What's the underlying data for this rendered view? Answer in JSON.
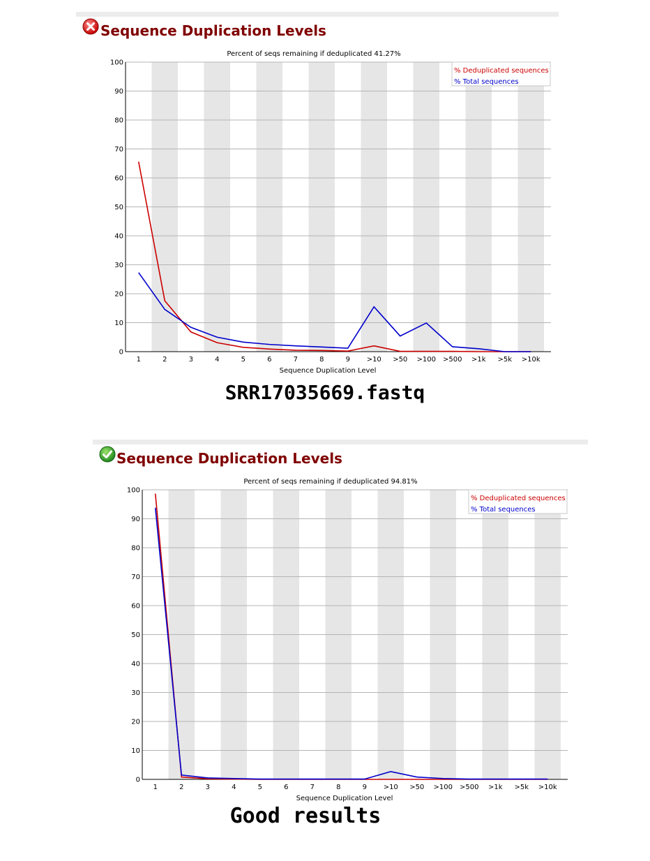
{
  "charts": [
    {
      "status": "fail",
      "status_icon": "error-icon",
      "section_title": "Sequence Duplication Levels",
      "caption": "SRR17035669.fastq",
      "chart_data": {
        "type": "line",
        "title": "Percent of seqs remaining if deduplicated 41.27%",
        "xlabel": "Sequence Duplication Level",
        "ylabel": "",
        "categories": [
          "1",
          "2",
          "3",
          "4",
          "5",
          "6",
          "7",
          "8",
          "9",
          ">10",
          ">50",
          ">100",
          ">500",
          ">1k",
          ">5k",
          ">10k"
        ],
        "ylim": [
          0,
          100
        ],
        "yticks": [
          0,
          10,
          20,
          30,
          40,
          50,
          60,
          70,
          80,
          90,
          100
        ],
        "grid": true,
        "legend": "top-right",
        "series": [
          {
            "name": "% Deduplicated sequences",
            "color": "#cc0000",
            "values": [
              65.6,
              17.6,
              6.8,
              3.1,
              1.5,
              0.9,
              0.5,
              0.4,
              0.2,
              2.0,
              0.1,
              0.1,
              0.1,
              0.0,
              0.0,
              0.0
            ]
          },
          {
            "name": "% Total sequences",
            "color": "#0000cc",
            "values": [
              27.3,
              14.6,
              8.4,
              5.0,
              3.3,
              2.5,
              2.0,
              1.6,
              1.2,
              15.5,
              5.4,
              9.9,
              1.7,
              1.0,
              0.0,
              0.0
            ]
          }
        ]
      }
    },
    {
      "status": "pass",
      "status_icon": "check-icon",
      "section_title": "Sequence Duplication Levels",
      "caption": "Good results",
      "chart_data": {
        "type": "line",
        "title": "Percent of seqs remaining if deduplicated 94.81%",
        "xlabel": "Sequence Duplication Level",
        "ylabel": "",
        "categories": [
          "1",
          "2",
          "3",
          "4",
          "5",
          "6",
          "7",
          "8",
          "9",
          ">10",
          ">50",
          ">100",
          ">500",
          ">1k",
          ">5k",
          ">10k"
        ],
        "ylim": [
          0,
          100
        ],
        "yticks": [
          0,
          10,
          20,
          30,
          40,
          50,
          60,
          70,
          80,
          90,
          100
        ],
        "grid": true,
        "legend": "top-right",
        "series": [
          {
            "name": "% Deduplicated sequences",
            "color": "#cc0000",
            "values": [
              98.7,
              0.8,
              0.2,
              0.1,
              0.0,
              0.0,
              0.0,
              0.0,
              0.0,
              0.0,
              0.0,
              0.0,
              0.0,
              0.0,
              0.0,
              0.0
            ]
          },
          {
            "name": "% Total sequences",
            "color": "#0000cc",
            "values": [
              93.8,
              1.5,
              0.5,
              0.3,
              0.1,
              0.1,
              0.1,
              0.1,
              0.1,
              2.7,
              0.8,
              0.3,
              0.1,
              0.1,
              0.1,
              0.1
            ]
          }
        ]
      }
    }
  ]
}
